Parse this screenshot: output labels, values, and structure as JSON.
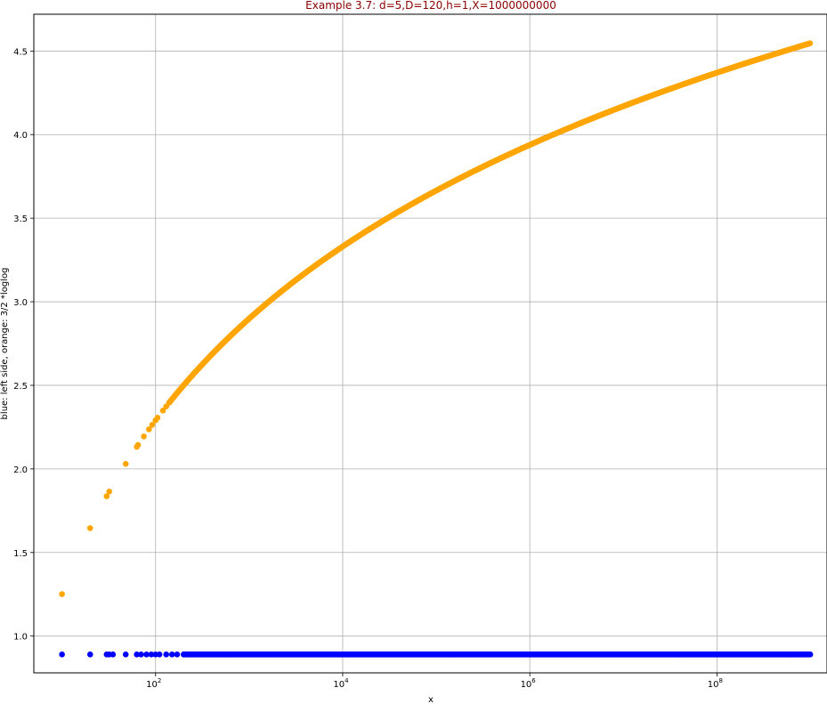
{
  "chart_data": {
    "type": "scatter",
    "title": "Example 3.7: d=5,D=120,h=1,X=1000000000",
    "title_color": "#8b0000",
    "xlabel": "x",
    "ylabel": "blue: left side, orange: 3/2 *loglog",
    "x_scale": "log",
    "xlim": [
      5,
      1500000000
    ],
    "ylim": [
      0.78,
      4.72
    ],
    "grid": true,
    "x_ticks": [
      {
        "value": 100,
        "label_base": "10",
        "label_exp": "2"
      },
      {
        "value": 10000,
        "label_base": "10",
        "label_exp": "4"
      },
      {
        "value": 1000000,
        "label_base": "10",
        "label_exp": "6"
      },
      {
        "value": 100000000,
        "label_base": "10",
        "label_exp": "8"
      }
    ],
    "y_ticks": [
      {
        "value": 1.0,
        "label": "1.0"
      },
      {
        "value": 1.5,
        "label": "1.5"
      },
      {
        "value": 2.0,
        "label": "2.0"
      },
      {
        "value": 2.5,
        "label": "2.5"
      },
      {
        "value": 3.0,
        "label": "3.0"
      },
      {
        "value": 3.5,
        "label": "3.5"
      },
      {
        "value": 4.0,
        "label": "4.0"
      },
      {
        "value": 4.5,
        "label": "4.5"
      }
    ],
    "series": [
      {
        "color": "#0000ff",
        "constant_y": 0.89,
        "x": [
          10,
          20,
          30,
          32,
          35,
          48,
          63,
          70,
          80,
          90,
          100,
          110,
          130,
          150,
          170,
          200,
          1000000000
        ]
      },
      {
        "color": "#ffa500",
        "formula": "1.5*ln(ln(x))",
        "x": [
          10,
          20,
          30,
          32,
          48,
          63,
          65,
          75,
          85,
          92,
          100,
          105,
          120,
          130,
          140,
          1000000000
        ]
      }
    ]
  }
}
